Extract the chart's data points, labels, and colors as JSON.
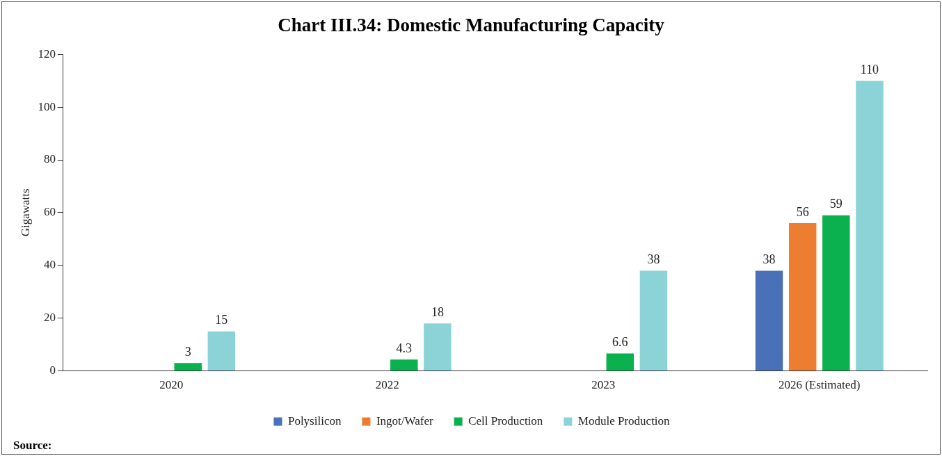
{
  "chart_data": {
    "type": "bar",
    "title": "Chart III.34: Domestic Manufacturing Capacity",
    "ylabel": "Gigawatts",
    "categories": [
      "2020",
      "2022",
      "2023",
      "2026 (Estimated)"
    ],
    "series": [
      {
        "name": "Polysilicon",
        "color": "#4a71b8",
        "values": [
          null,
          null,
          null,
          38
        ]
      },
      {
        "name": "Ingot/Wafer",
        "color": "#ed7d31",
        "values": [
          null,
          null,
          null,
          56
        ]
      },
      {
        "name": "Cell Production",
        "color": "#0bb04f",
        "values": [
          3,
          4.3,
          6.6,
          59
        ]
      },
      {
        "name": "Module Production",
        "color": "#8bd3d6",
        "values": [
          15,
          18,
          38,
          110
        ]
      }
    ],
    "ylim": [
      0,
      120
    ],
    "yticks": [
      0,
      20,
      40,
      60,
      80,
      100,
      120
    ],
    "grid": false,
    "legend": "bottom",
    "data_labels": true,
    "annotations": [
      "Source:"
    ]
  }
}
